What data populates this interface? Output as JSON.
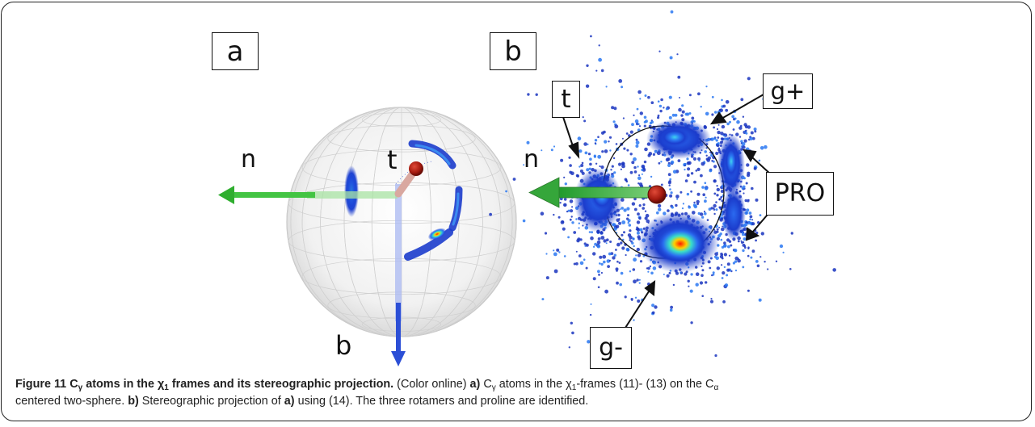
{
  "panels": {
    "a": {
      "tag": "a",
      "axis_labels": {
        "n": "n",
        "t": "t",
        "b": "b"
      }
    },
    "b": {
      "tag": "b",
      "axis_labels": {
        "n": "n"
      },
      "rotamer_labels": {
        "t": "t",
        "g_plus": "g+",
        "pro": "PRO",
        "g_minus": "g-"
      }
    }
  },
  "colors": {
    "n_axis": "#3cc23c",
    "t_axis": "#b33228",
    "b_axis": "#2f52d8",
    "density_low": "#1d3fd0",
    "density_high": "#ff2a00",
    "atom": "#a81a0e"
  },
  "caption": {
    "figure_label": "Figure 11",
    "title_c": "C",
    "title_c_sub": "γ",
    "title_mid": " atoms in the χ",
    "title_chi_sub": "1",
    "title_end": " frames and its stereographic projection.",
    "color_note": " (Color online) ",
    "part_a": "a)",
    "part_a_text_c": " C",
    "part_a_text_c_sub": "γ",
    "part_a_text_mid": " atoms in the χ",
    "part_a_text_chi_sub": "1",
    "part_a_text_frames": "-frames (11)- (13) on the C",
    "part_a_text_ca_sub": "α",
    "part_a_text_end": "",
    "line2_start": "centered two-sphere. ",
    "part_b": "b)",
    "part_b_text": " Stereographic projection of ",
    "part_b_ref": "a)",
    "part_b_text2": " using (14). The three rotamers and proline are identified."
  }
}
